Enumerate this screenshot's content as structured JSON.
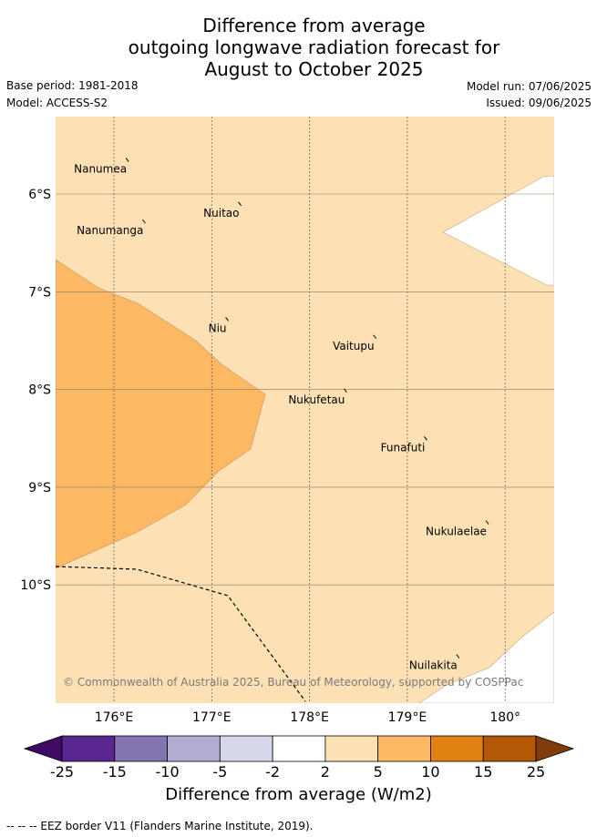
{
  "title": {
    "line1": "Difference from average",
    "line2": "outgoing longwave radiation forecast for",
    "line3": "August to October 2025"
  },
  "meta": {
    "base_period": "Base period: 1981-2018",
    "model": "Model: ACCESS-S2",
    "model_run": "Model run: 07/06/2025",
    "issued": "Issued: 09/06/2025"
  },
  "map": {
    "lon_range": [
      175.5,
      180.5
    ],
    "lat_range": [
      -11.2,
      -5.2
    ],
    "lon_ticks": [
      {
        "value": 176,
        "label": "176°E"
      },
      {
        "value": 177,
        "label": "177°E"
      },
      {
        "value": 178,
        "label": "178°E"
      },
      {
        "value": 179,
        "label": "179°E"
      },
      {
        "value": 180,
        "label": "180°"
      }
    ],
    "lat_ticks": [
      {
        "value": -6,
        "label": "6°S"
      },
      {
        "value": -7,
        "label": "7°S"
      },
      {
        "value": -8,
        "label": "8°S"
      },
      {
        "value": -9,
        "label": "9°S"
      },
      {
        "value": -10,
        "label": "10°S"
      }
    ],
    "places": [
      {
        "name": "Nanumea",
        "lon": 176.15,
        "lat": -5.67
      },
      {
        "name": "Nuitao",
        "lon": 177.3,
        "lat": -6.12
      },
      {
        "name": "Nanumanga",
        "lon": 176.32,
        "lat": -6.3
      },
      {
        "name": "Niu",
        "lon": 177.17,
        "lat": -7.3
      },
      {
        "name": "Vaitupu",
        "lon": 178.68,
        "lat": -7.48
      },
      {
        "name": "Nukufetau",
        "lon": 178.38,
        "lat": -8.03
      },
      {
        "name": "Funafuti",
        "lon": 179.2,
        "lat": -8.52
      },
      {
        "name": "Nukulaelae",
        "lon": 179.83,
        "lat": -9.38
      },
      {
        "name": "Nuilakita",
        "lon": 179.53,
        "lat": -10.75
      }
    ],
    "copyright": "© Commonwealth of Australia 2025, Bureau of Meteorology, supported by COSPPac"
  },
  "colorbar": {
    "title": "Difference from average (W/m2)",
    "ticks": [
      "-25",
      "-15",
      "-10",
      "-5",
      "-2",
      "2",
      "5",
      "10",
      "15",
      "25"
    ],
    "colors": [
      "#5a2690",
      "#8474b1",
      "#b2acd3",
      "#d8d8ec",
      "#ffffff",
      "#fde0b4",
      "#fdb863",
      "#e08214",
      "#b35806"
    ],
    "under_color": "#3f0a63",
    "over_color": "#7f3b08"
  },
  "footer": "--  --  -- EEZ border V11 (Flanders Marine Institute, 2019)."
}
